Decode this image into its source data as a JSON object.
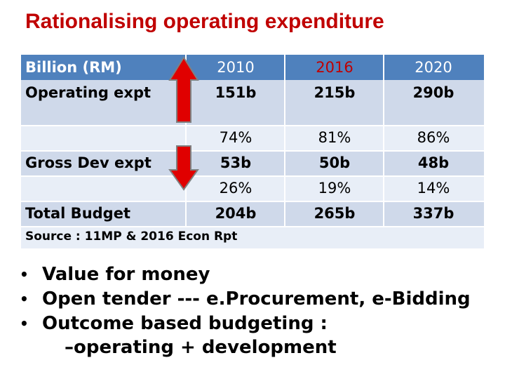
{
  "title": "Rationalising operating expenditure",
  "table": {
    "header": {
      "label": "Billion (RM)",
      "years": [
        "2010",
        "2016",
        "2020"
      ]
    },
    "rows": {
      "operating": {
        "label": "Operating expt",
        "values": [
          "151b",
          "215b",
          "290b"
        ]
      },
      "operating_pct": {
        "values": [
          "74%",
          "81%",
          "86%"
        ]
      },
      "development": {
        "label": "Gross Dev expt",
        "values": [
          "53b",
          "50b",
          "48b"
        ]
      },
      "development_pct": {
        "values": [
          "26%",
          "19%",
          "14%"
        ]
      },
      "total": {
        "label": "Total Budget",
        "values": [
          "204b",
          "265b",
          "337b"
        ]
      }
    },
    "source": "Source : 11MP & 2016 Econ Rpt"
  },
  "arrows": {
    "operating": "up-arrow",
    "development": "down-arrow",
    "color": "#e00000"
  },
  "colors": {
    "title": "#c00000",
    "header": "#4f81bd",
    "band_dark": "#cfd9ea",
    "band_light": "#e8eef7"
  },
  "bullets": [
    "Value for money",
    "Open tender --- e.Procurement, e-Bidding",
    "Outcome based budgeting :"
  ],
  "bullet_sub": "–operating + development"
}
